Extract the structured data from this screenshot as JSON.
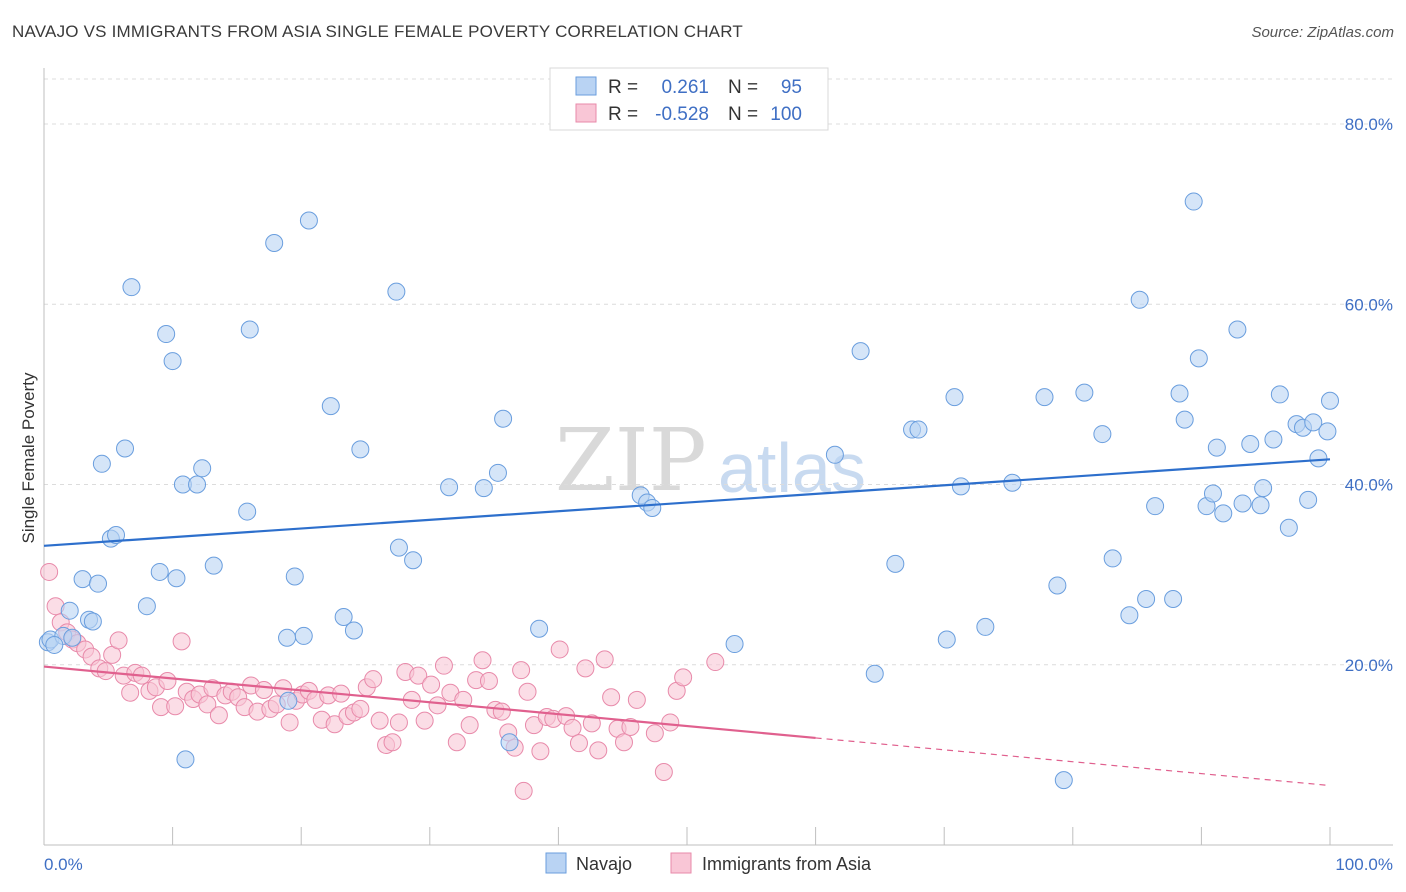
{
  "header": {
    "title": "NAVAJO VS IMMIGRANTS FROM ASIA SINGLE FEMALE POVERTY CORRELATION CHART",
    "source": "Source: ZipAtlas.com"
  },
  "colors": {
    "navajo_fill": "#b9d3f3",
    "navajo_stroke": "#6a9ede",
    "navajo_line": "#2d6fcc",
    "asia_fill": "#f9c6d6",
    "asia_stroke": "#e88aaa",
    "asia_line": "#e0608e",
    "label_blue": "#3f6fc4"
  },
  "legend": {
    "rows": [
      {
        "r_label": "R =",
        "r_value": "0.261",
        "n_label": "N =",
        "n_value": "95"
      },
      {
        "r_label": "R =",
        "r_value": "-0.528",
        "n_label": "N =",
        "n_value": "100"
      }
    ]
  },
  "watermark": {
    "part1": "ZIP",
    "part2": "atlas"
  },
  "chart_data": {
    "type": "scatter",
    "title": "NAVAJO VS IMMIGRANTS FROM ASIA SINGLE FEMALE POVERTY CORRELATION CHART",
    "xlabel": "",
    "ylabel": "Single Female Poverty",
    "xlim": [
      0,
      100
    ],
    "ylim": [
      0,
      85
    ],
    "x_tick_labels": [
      "0.0%",
      "100.0%"
    ],
    "y_ticks": [
      20,
      40,
      60,
      80
    ],
    "y_tick_labels": [
      "20.0%",
      "40.0%",
      "60.0%",
      "80.0%"
    ],
    "legend_position": "top-center",
    "series": [
      {
        "name": "Navajo",
        "r": 0.261,
        "n": 95,
        "trend": {
          "x": [
            0,
            100
          ],
          "y": [
            33.2,
            42.8
          ],
          "dashed_from": null
        },
        "points": [
          [
            0.3,
            22.5
          ],
          [
            0.5,
            22.8
          ],
          [
            1.5,
            23.2
          ],
          [
            2,
            26
          ],
          [
            2.2,
            23
          ],
          [
            3,
            29.5
          ],
          [
            3.5,
            25
          ],
          [
            3.8,
            24.8
          ],
          [
            4.2,
            29
          ],
          [
            4.5,
            42.3
          ],
          [
            5.2,
            34
          ],
          [
            5.6,
            34.4
          ],
          [
            6.3,
            44
          ],
          [
            6.8,
            61.9
          ],
          [
            8,
            26.5
          ],
          [
            9,
            30.3
          ],
          [
            9.5,
            56.7
          ],
          [
            10,
            53.7
          ],
          [
            10.3,
            29.6
          ],
          [
            10.8,
            40
          ],
          [
            11,
            9.5
          ],
          [
            11.9,
            40
          ],
          [
            12.3,
            41.8
          ],
          [
            13.2,
            31
          ],
          [
            15.8,
            37
          ],
          [
            16,
            57.2
          ],
          [
            17.9,
            66.8
          ],
          [
            18.9,
            23
          ],
          [
            19,
            16
          ],
          [
            19.5,
            29.8
          ],
          [
            20.2,
            23.2
          ],
          [
            20.6,
            69.3
          ],
          [
            22.3,
            48.7
          ],
          [
            23.3,
            25.3
          ],
          [
            24.1,
            23.8
          ],
          [
            24.6,
            43.9
          ],
          [
            27.4,
            61.4
          ],
          [
            27.6,
            33
          ],
          [
            28.7,
            31.6
          ],
          [
            31.5,
            39.7
          ],
          [
            34.2,
            39.6
          ],
          [
            35.3,
            41.3
          ],
          [
            35.7,
            47.3
          ],
          [
            36.2,
            11.4
          ],
          [
            38.5,
            24
          ],
          [
            46.4,
            38.8
          ],
          [
            46.9,
            38
          ],
          [
            47.3,
            37.4
          ],
          [
            53.7,
            22.3
          ],
          [
            61.5,
            43.3
          ],
          [
            63.5,
            54.8
          ],
          [
            64.6,
            19
          ],
          [
            66.2,
            31.2
          ],
          [
            67.5,
            46.1
          ],
          [
            68,
            46.1
          ],
          [
            70.2,
            22.8
          ],
          [
            70.8,
            49.7
          ],
          [
            71.3,
            39.8
          ],
          [
            73.2,
            24.2
          ],
          [
            77.8,
            49.7
          ],
          [
            78.8,
            28.8
          ],
          [
            79.3,
            7.2
          ],
          [
            80.9,
            50.2
          ],
          [
            82.3,
            45.6
          ],
          [
            83.1,
            31.8
          ],
          [
            84.4,
            25.5
          ],
          [
            85.2,
            60.5
          ],
          [
            85.7,
            27.3
          ],
          [
            86.4,
            37.6
          ],
          [
            87.8,
            27.3
          ],
          [
            88.3,
            50.1
          ],
          [
            88.7,
            47.2
          ],
          [
            89.4,
            71.4
          ],
          [
            89.8,
            54
          ],
          [
            90.4,
            37.6
          ],
          [
            90.9,
            39
          ],
          [
            91.2,
            44.1
          ],
          [
            91.7,
            36.8
          ],
          [
            92.8,
            57.2
          ],
          [
            93.2,
            37.9
          ],
          [
            93.8,
            44.5
          ],
          [
            94.6,
            37.7
          ],
          [
            94.8,
            39.6
          ],
          [
            95.6,
            45
          ],
          [
            96.1,
            50
          ],
          [
            96.8,
            35.2
          ],
          [
            97.4,
            46.7
          ],
          [
            97.9,
            46.3
          ],
          [
            98.3,
            38.3
          ],
          [
            98.7,
            46.9
          ],
          [
            99.1,
            42.9
          ],
          [
            99.8,
            45.9
          ],
          [
            100,
            49.3
          ],
          [
            75.3,
            40.2
          ],
          [
            0.8,
            22.2
          ]
        ]
      },
      {
        "name": "Immigrants from Asia",
        "r": -0.528,
        "n": 100,
        "trend": {
          "x": [
            0,
            100
          ],
          "y": [
            19.8,
            6.6
          ],
          "dashed_from": 60
        },
        "points": [
          [
            0.4,
            30.3
          ],
          [
            0.9,
            26.5
          ],
          [
            1.3,
            24.7
          ],
          [
            1.8,
            23.6
          ],
          [
            2.2,
            22.8
          ],
          [
            2.6,
            22.4
          ],
          [
            3.2,
            21.7
          ],
          [
            3.7,
            20.9
          ],
          [
            4.3,
            19.6
          ],
          [
            4.8,
            19.3
          ],
          [
            5.3,
            21.1
          ],
          [
            5.8,
            22.7
          ],
          [
            6.2,
            18.8
          ],
          [
            6.7,
            16.9
          ],
          [
            7.1,
            19.1
          ],
          [
            7.6,
            18.8
          ],
          [
            8.2,
            17.1
          ],
          [
            8.7,
            17.5
          ],
          [
            9.1,
            15.3
          ],
          [
            9.6,
            18.2
          ],
          [
            10.2,
            15.4
          ],
          [
            10.7,
            22.6
          ],
          [
            11.1,
            17
          ],
          [
            11.6,
            16.2
          ],
          [
            12.1,
            16.7
          ],
          [
            12.7,
            15.6
          ],
          [
            13.1,
            17.4
          ],
          [
            13.6,
            14.4
          ],
          [
            14.1,
            16.6
          ],
          [
            14.6,
            17
          ],
          [
            15.1,
            16.4
          ],
          [
            15.6,
            15.3
          ],
          [
            16.1,
            17.7
          ],
          [
            16.6,
            14.8
          ],
          [
            17.1,
            17.2
          ],
          [
            17.6,
            15.1
          ],
          [
            18.1,
            15.6
          ],
          [
            18.6,
            17.4
          ],
          [
            19.1,
            13.6
          ],
          [
            19.6,
            16
          ],
          [
            20.1,
            16.7
          ],
          [
            20.6,
            17.1
          ],
          [
            21.1,
            16.1
          ],
          [
            21.6,
            13.9
          ],
          [
            22.1,
            16.6
          ],
          [
            22.6,
            13.4
          ],
          [
            23.1,
            16.8
          ],
          [
            23.6,
            14.3
          ],
          [
            24.1,
            14.7
          ],
          [
            24.6,
            15.1
          ],
          [
            25.1,
            17.5
          ],
          [
            25.6,
            18.4
          ],
          [
            26.1,
            13.8
          ],
          [
            26.6,
            11.1
          ],
          [
            27.1,
            11.4
          ],
          [
            27.6,
            13.6
          ],
          [
            28.1,
            19.2
          ],
          [
            28.6,
            16.1
          ],
          [
            29.1,
            18.8
          ],
          [
            29.6,
            13.8
          ],
          [
            30.1,
            17.8
          ],
          [
            30.6,
            15.5
          ],
          [
            31.1,
            19.9
          ],
          [
            31.6,
            16.9
          ],
          [
            32.1,
            11.4
          ],
          [
            32.6,
            16.1
          ],
          [
            33.1,
            13.3
          ],
          [
            33.6,
            18.3
          ],
          [
            34.1,
            20.5
          ],
          [
            34.6,
            18.2
          ],
          [
            35.1,
            15
          ],
          [
            35.6,
            14.8
          ],
          [
            36.1,
            12.5
          ],
          [
            36.6,
            10.8
          ],
          [
            37.1,
            19.4
          ],
          [
            37.6,
            17
          ],
          [
            38.1,
            13.3
          ],
          [
            38.6,
            10.4
          ],
          [
            39.1,
            14.2
          ],
          [
            39.6,
            14
          ],
          [
            40.1,
            21.7
          ],
          [
            40.6,
            14.3
          ],
          [
            41.1,
            13
          ],
          [
            41.6,
            11.3
          ],
          [
            42.1,
            19.6
          ],
          [
            42.6,
            13.5
          ],
          [
            43.1,
            10.5
          ],
          [
            43.6,
            20.6
          ],
          [
            44.1,
            16.4
          ],
          [
            44.6,
            12.9
          ],
          [
            45.1,
            11.4
          ],
          [
            45.6,
            13.1
          ],
          [
            46.1,
            16.1
          ],
          [
            47.5,
            12.4
          ],
          [
            48.2,
            8.1
          ],
          [
            48.7,
            13.6
          ],
          [
            49.2,
            17.1
          ],
          [
            49.7,
            18.6
          ],
          [
            52.2,
            20.3
          ],
          [
            37.3,
            6
          ]
        ]
      }
    ]
  },
  "bottom_legend": {
    "items": [
      {
        "label": "Navajo"
      },
      {
        "label": "Immigrants from Asia"
      }
    ]
  }
}
